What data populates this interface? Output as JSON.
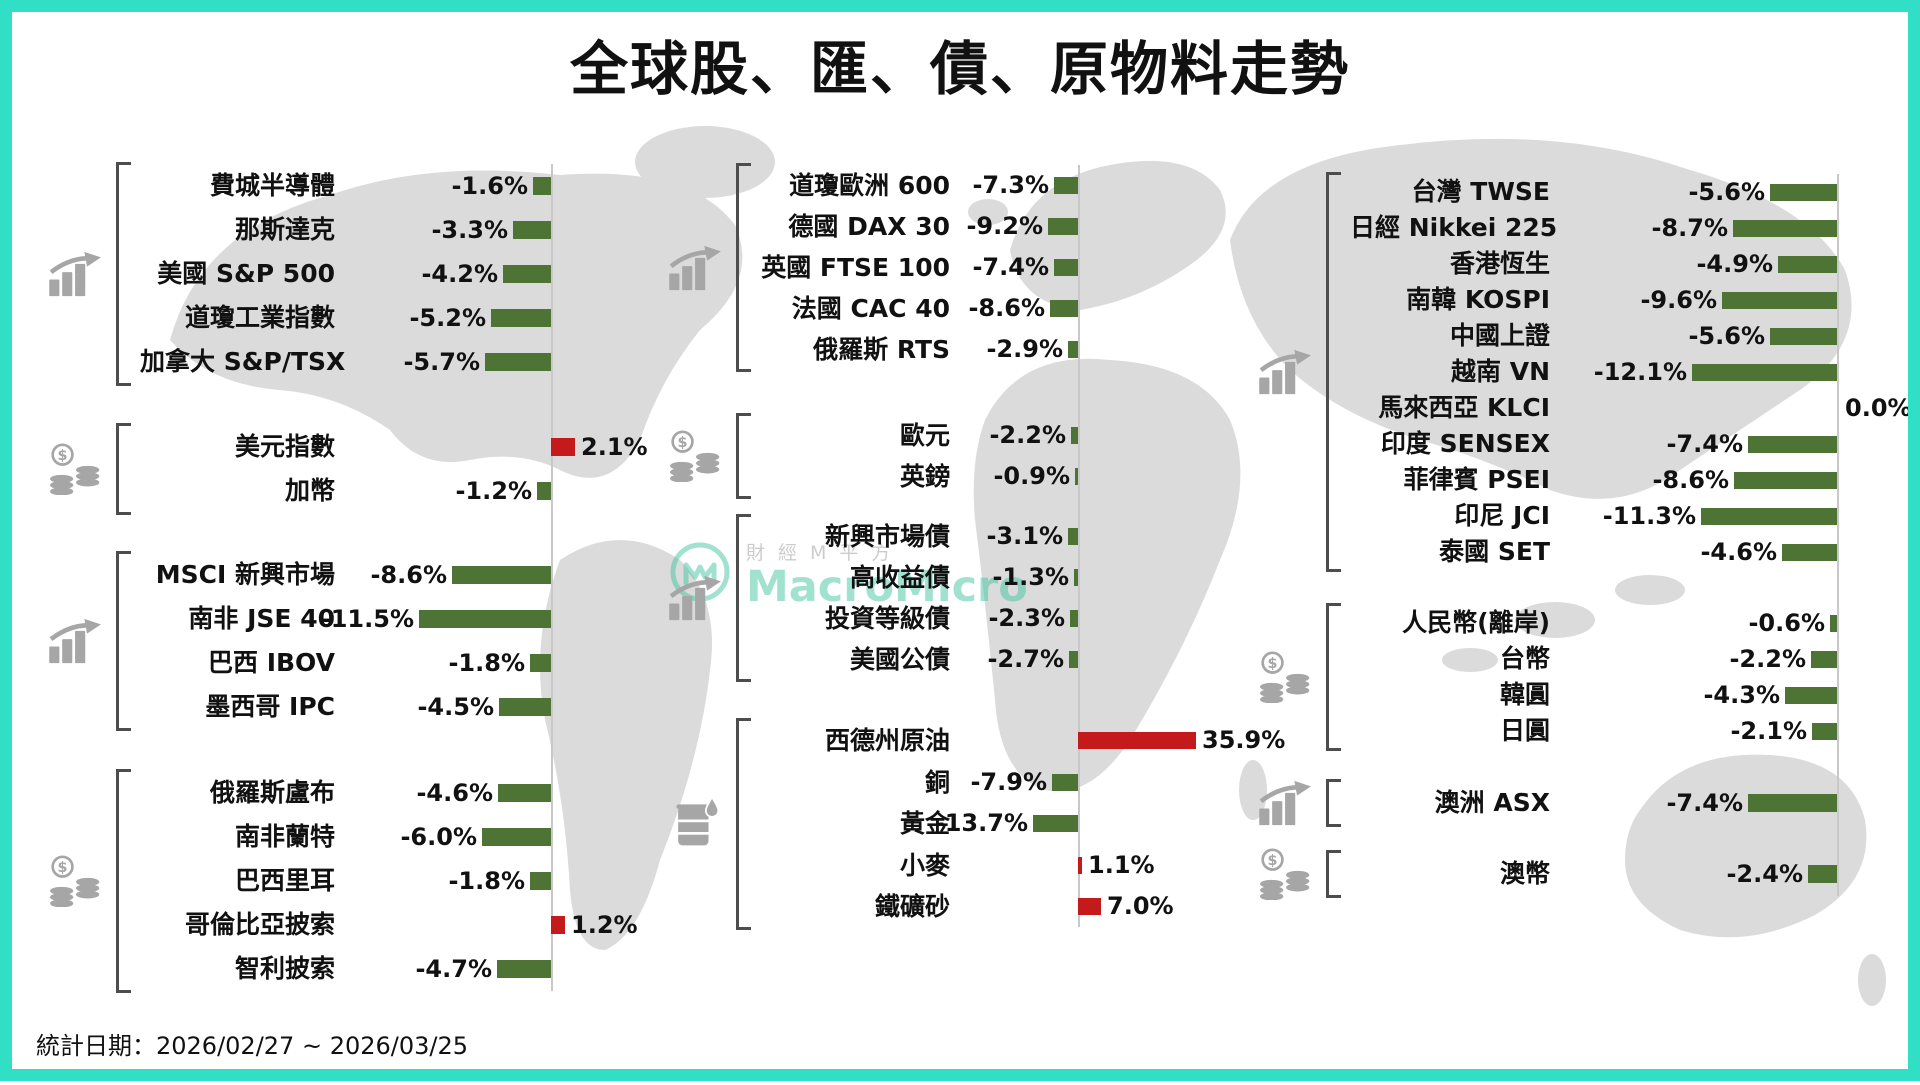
{
  "page": {
    "title": "全球股、匯、債、原物料走勢",
    "footer": "統計日期：2026/02/27 ~ 2026/03/25"
  },
  "watermark": {
    "cn": "財經M平方",
    "en": "MacroMicro"
  },
  "colors": {
    "frame": "#31dfc7",
    "negative_bar": "#4d7434",
    "positive_bar": "#c41a1b",
    "bracket": "#4d4d4d",
    "axis": "#c8c8c8",
    "icon": "#a6a6a6",
    "map": "#dbdbdb",
    "watermark_teal": "#45c4a3",
    "watermark_gray": "#9a9a9a",
    "text": "#111111"
  },
  "chart_data": {
    "type": "bar",
    "orientation": "horizontal",
    "value_unit": "%",
    "positive_color": "#c41a1b",
    "negative_color": "#4d7434",
    "title": "全球股、匯、債、原物料走勢",
    "period": "2026/02/27 ~ 2026/03/25",
    "columns": [
      {
        "id": "left",
        "groups": [
          {
            "icon": "chart-icon",
            "rows": [
              {
                "label": "費城半導體",
                "value": -1.6
              },
              {
                "label": "那斯達克",
                "value": -3.3
              },
              {
                "label": "美國 S&P 500",
                "value": -4.2
              },
              {
                "label": "道瓊工業指數",
                "value": -5.2
              },
              {
                "label": "加拿大 S&P/TSX",
                "value": -5.7
              }
            ]
          },
          {
            "icon": "coins-icon",
            "rows": [
              {
                "label": "美元指數",
                "value": 2.1
              },
              {
                "label": "加幣",
                "value": -1.2
              }
            ]
          },
          {
            "icon": "chart-icon",
            "rows": [
              {
                "label": "MSCI 新興市場",
                "value": -8.6
              },
              {
                "label": "南非 JSE 40",
                "value": -11.5
              },
              {
                "label": "巴西 IBOV",
                "value": -1.8
              },
              {
                "label": "墨西哥 IPC",
                "value": -4.5
              }
            ]
          },
          {
            "icon": "coins-icon",
            "rows": [
              {
                "label": "俄羅斯盧布",
                "value": -4.6
              },
              {
                "label": "南非蘭特",
                "value": -6.0
              },
              {
                "label": "巴西里耳",
                "value": -1.8
              },
              {
                "label": "哥倫比亞披索",
                "value": 1.2
              },
              {
                "label": "智利披索",
                "value": -4.7
              }
            ]
          }
        ]
      },
      {
        "id": "middle",
        "groups": [
          {
            "icon": "chart-icon",
            "rows": [
              {
                "label": "道瓊歐洲 600",
                "value": -7.3
              },
              {
                "label": "德國 DAX 30",
                "value": -9.2
              },
              {
                "label": "英國 FTSE 100",
                "value": -7.4
              },
              {
                "label": "法國 CAC 40",
                "value": -8.6
              },
              {
                "label": "俄羅斯 RTS",
                "value": -2.9
              }
            ]
          },
          {
            "icon": "coins-icon",
            "rows": [
              {
                "label": "歐元",
                "value": -2.2
              },
              {
                "label": "英鎊",
                "value": -0.9
              }
            ]
          },
          {
            "icon": "chart-icon",
            "rows": [
              {
                "label": "新興市場債",
                "value": -3.1
              },
              {
                "label": "高收益債",
                "value": -1.3
              },
              {
                "label": "投資等級債",
                "value": -2.3
              },
              {
                "label": "美國公債",
                "value": -2.7
              }
            ]
          },
          {
            "icon": "barrel-icon",
            "rows": [
              {
                "label": "西德州原油",
                "value": 35.9
              },
              {
                "label": "銅",
                "value": -7.9
              },
              {
                "label": "黃金",
                "value": -13.7
              },
              {
                "label": "小麥",
                "value": 1.1
              },
              {
                "label": "鐵礦砂",
                "value": 7.0
              }
            ]
          }
        ]
      },
      {
        "id": "right",
        "groups": [
          {
            "icon": "chart-icon",
            "rows": [
              {
                "label": "台灣 TWSE",
                "value": -5.6
              },
              {
                "label": "日經 Nikkei 225",
                "value": -8.7
              },
              {
                "label": "香港恆生",
                "value": -4.9
              },
              {
                "label": "南韓 KOSPI",
                "value": -9.6
              },
              {
                "label": "中國上證",
                "value": -5.6
              },
              {
                "label": "越南 VN",
                "value": -12.1
              },
              {
                "label": "馬來西亞 KLCI",
                "value": 0.0
              },
              {
                "label": "印度 SENSEX",
                "value": -7.4
              },
              {
                "label": "菲律賓 PSEI",
                "value": -8.6
              },
              {
                "label": "印尼 JCI",
                "value": -11.3
              },
              {
                "label": "泰國 SET",
                "value": -4.6
              }
            ]
          },
          {
            "icon": "coins-icon",
            "rows": [
              {
                "label": "人民幣(離岸)",
                "value": -0.6
              },
              {
                "label": "台幣",
                "value": -2.2
              },
              {
                "label": "韓圓",
                "value": -4.3
              },
              {
                "label": "日圓",
                "value": -2.1
              }
            ]
          },
          {
            "icon": "chart-icon",
            "rows": [
              {
                "label": "澳洲 ASX",
                "value": -7.4
              }
            ]
          },
          {
            "icon": "coins-icon",
            "rows": [
              {
                "label": "澳幣",
                "value": -2.4
              }
            ]
          }
        ]
      }
    ]
  }
}
